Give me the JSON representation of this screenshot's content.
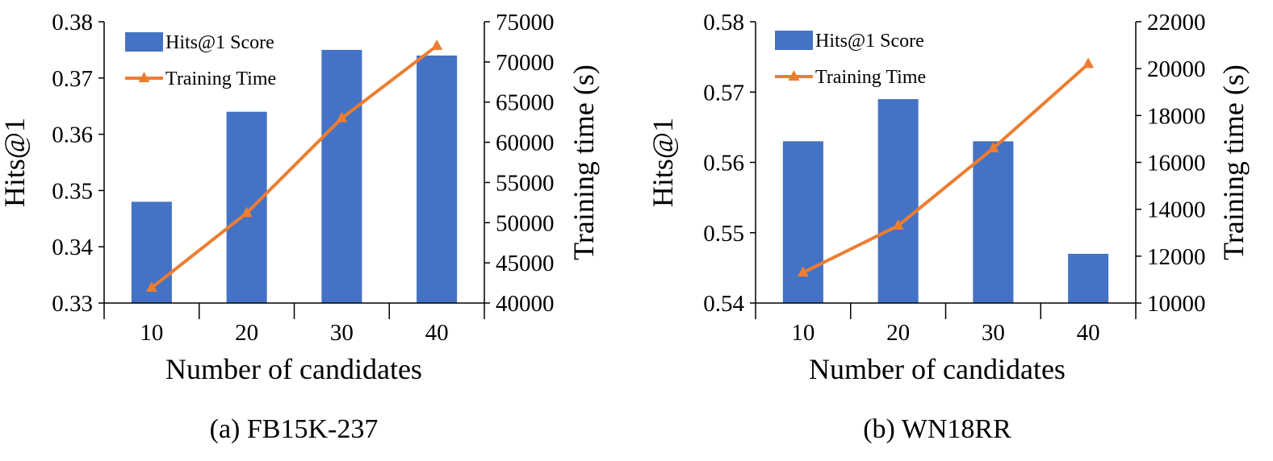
{
  "colors": {
    "bar": "#4472C4",
    "line": "#ED7D31",
    "axis": "#000000",
    "background": "#FFFFFF"
  },
  "chart_data": [
    {
      "type": "bar",
      "caption": "(a) FB15K-237",
      "categories": [
        "10",
        "20",
        "30",
        "40"
      ],
      "xlabel": "Number of candidates",
      "ylabel": "Hits@1",
      "y2label": "Training time (s)",
      "ylim": [
        0.33,
        0.38
      ],
      "yticks": [
        "0.33",
        "0.34",
        "0.35",
        "0.36",
        "0.37",
        "0.38"
      ],
      "y2lim": [
        40000,
        75000
      ],
      "y2ticks": [
        "40000",
        "45000",
        "50000",
        "55000",
        "60000",
        "65000",
        "70000",
        "75000"
      ],
      "legend_position": "top-left",
      "grid": false,
      "series": [
        {
          "name": "Hits@1 Score",
          "type": "bar",
          "axis": "left",
          "values": [
            0.348,
            0.364,
            0.375,
            0.374
          ]
        },
        {
          "name": "Training Time",
          "type": "line",
          "marker": "triangle",
          "axis": "right",
          "values": [
            41900,
            51200,
            63000,
            72000
          ]
        }
      ]
    },
    {
      "type": "bar",
      "caption": "(b) WN18RR",
      "categories": [
        "10",
        "20",
        "30",
        "40"
      ],
      "xlabel": "Number of candidates",
      "ylabel": "Hits@1",
      "y2label": "Training time (s)",
      "ylim": [
        0.54,
        0.58
      ],
      "yticks": [
        "0.54",
        "0.55",
        "0.56",
        "0.57",
        "0.58"
      ],
      "y2lim": [
        10000,
        22000
      ],
      "y2ticks": [
        "10000",
        "12000",
        "14000",
        "16000",
        "18000",
        "20000",
        "22000"
      ],
      "legend_position": "top-left",
      "grid": false,
      "series": [
        {
          "name": "Hits@1 Score",
          "type": "bar",
          "axis": "left",
          "values": [
            0.563,
            0.569,
            0.563,
            0.547
          ]
        },
        {
          "name": "Training Time",
          "type": "line",
          "marker": "triangle",
          "axis": "right",
          "values": [
            11300,
            13300,
            16600,
            20200
          ]
        }
      ]
    }
  ]
}
